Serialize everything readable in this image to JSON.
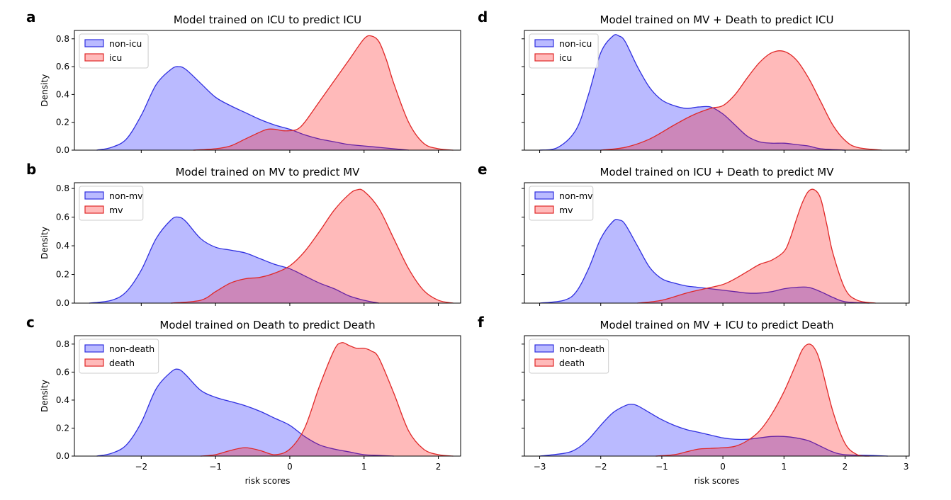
{
  "chart_data": [
    {
      "panel": "a",
      "type": "area",
      "title": "Model trained on ICU to predict ICU",
      "ylabel": "Density",
      "xlabel": "",
      "xlim": [
        -2.9,
        2.3
      ],
      "ylim": [
        0,
        0.86
      ],
      "xticks": [
        -2,
        -1,
        0,
        1,
        2
      ],
      "show_xticklabels": false,
      "yticks": [
        0.0,
        0.2,
        0.4,
        0.6,
        0.8
      ],
      "show_yticklabels": true,
      "legend": "top-left",
      "series": [
        {
          "name": "non-icu",
          "color": "#0000ff",
          "x": [
            -2.6,
            -2.4,
            -2.2,
            -2.0,
            -1.8,
            -1.6,
            -1.5,
            -1.4,
            -1.2,
            -1.0,
            -0.8,
            -0.6,
            -0.4,
            -0.2,
            0.0,
            0.2,
            0.4,
            0.6,
            0.8,
            1.0,
            1.2,
            1.4,
            1.6
          ],
          "y": [
            0.0,
            0.02,
            0.08,
            0.25,
            0.47,
            0.58,
            0.6,
            0.58,
            0.48,
            0.38,
            0.32,
            0.27,
            0.22,
            0.18,
            0.15,
            0.11,
            0.08,
            0.06,
            0.04,
            0.03,
            0.02,
            0.01,
            0.0
          ]
        },
        {
          "name": "icu",
          "color": "#ff0000",
          "x": [
            -1.3,
            -1.0,
            -0.8,
            -0.6,
            -0.4,
            -0.3,
            -0.2,
            -0.1,
            0.0,
            0.1,
            0.2,
            0.4,
            0.6,
            0.8,
            1.0,
            1.1,
            1.2,
            1.3,
            1.4,
            1.6,
            1.8,
            2.0,
            2.2
          ],
          "y": [
            0.0,
            0.01,
            0.03,
            0.08,
            0.13,
            0.15,
            0.15,
            0.14,
            0.14,
            0.15,
            0.2,
            0.35,
            0.5,
            0.65,
            0.8,
            0.82,
            0.78,
            0.65,
            0.48,
            0.2,
            0.05,
            0.01,
            0.0
          ]
        }
      ]
    },
    {
      "panel": "b",
      "type": "area",
      "title": "Model trained on MV to predict MV",
      "ylabel": "Density",
      "xlabel": "",
      "xlim": [
        -2.9,
        2.3
      ],
      "ylim": [
        0,
        0.84
      ],
      "xticks": [
        -2,
        -1,
        0,
        1,
        2
      ],
      "show_xticklabels": false,
      "yticks": [
        0.0,
        0.2,
        0.4,
        0.6,
        0.8
      ],
      "show_yticklabels": true,
      "legend": "top-left",
      "series": [
        {
          "name": "non-mv",
          "color": "#0000ff",
          "x": [
            -2.7,
            -2.4,
            -2.2,
            -2.0,
            -1.8,
            -1.6,
            -1.5,
            -1.4,
            -1.2,
            -1.0,
            -0.8,
            -0.6,
            -0.4,
            -0.2,
            0.0,
            0.2,
            0.4,
            0.6,
            0.8,
            1.0,
            1.2
          ],
          "y": [
            0.0,
            0.02,
            0.08,
            0.23,
            0.45,
            0.58,
            0.6,
            0.57,
            0.45,
            0.39,
            0.37,
            0.35,
            0.31,
            0.27,
            0.24,
            0.19,
            0.14,
            0.1,
            0.05,
            0.02,
            0.0
          ]
        },
        {
          "name": "mv",
          "color": "#ff0000",
          "x": [
            -1.6,
            -1.2,
            -1.0,
            -0.8,
            -0.6,
            -0.4,
            -0.2,
            0.0,
            0.2,
            0.4,
            0.6,
            0.8,
            0.9,
            1.0,
            1.2,
            1.4,
            1.6,
            1.8,
            2.0,
            2.2
          ],
          "y": [
            0.0,
            0.02,
            0.08,
            0.14,
            0.17,
            0.18,
            0.21,
            0.26,
            0.36,
            0.5,
            0.65,
            0.76,
            0.79,
            0.78,
            0.66,
            0.45,
            0.24,
            0.09,
            0.02,
            0.0
          ]
        }
      ]
    },
    {
      "panel": "c",
      "type": "area",
      "title": "Model trained on Death to predict Death",
      "ylabel": "Density",
      "xlabel": "risk scores",
      "xlim": [
        -2.9,
        2.3
      ],
      "ylim": [
        0,
        0.86
      ],
      "xticks": [
        -2,
        -1,
        0,
        1,
        2
      ],
      "show_xticklabels": true,
      "yticks": [
        0.0,
        0.2,
        0.4,
        0.6,
        0.8
      ],
      "show_yticklabels": true,
      "legend": "top-left",
      "series": [
        {
          "name": "non-death",
          "color": "#0000ff",
          "x": [
            -2.6,
            -2.4,
            -2.2,
            -2.0,
            -1.8,
            -1.6,
            -1.5,
            -1.4,
            -1.2,
            -1.0,
            -0.8,
            -0.6,
            -0.4,
            -0.2,
            0.0,
            0.2,
            0.4,
            0.6,
            0.8,
            1.0,
            1.2,
            1.4
          ],
          "y": [
            0.0,
            0.02,
            0.08,
            0.24,
            0.48,
            0.6,
            0.62,
            0.58,
            0.47,
            0.42,
            0.39,
            0.36,
            0.32,
            0.27,
            0.22,
            0.14,
            0.08,
            0.05,
            0.03,
            0.01,
            0.005,
            0.0
          ]
        },
        {
          "name": "death",
          "color": "#ff0000",
          "x": [
            -1.2,
            -1.0,
            -0.8,
            -0.6,
            -0.4,
            -0.2,
            0.0,
            0.2,
            0.4,
            0.6,
            0.7,
            0.8,
            0.9,
            1.0,
            1.1,
            1.2,
            1.4,
            1.6,
            1.8,
            2.0,
            2.2
          ],
          "y": [
            0.0,
            0.01,
            0.04,
            0.06,
            0.04,
            0.01,
            0.05,
            0.2,
            0.5,
            0.76,
            0.81,
            0.79,
            0.77,
            0.77,
            0.75,
            0.7,
            0.45,
            0.18,
            0.05,
            0.01,
            0.0
          ]
        }
      ]
    },
    {
      "panel": "d",
      "type": "area",
      "title": "Model trained on MV + Death to predict ICU",
      "ylabel": "",
      "xlabel": "",
      "xlim": [
        -3.25,
        3.05
      ],
      "ylim": [
        0,
        0.86
      ],
      "xticks": [
        -3,
        -2,
        -1,
        0,
        1,
        2,
        3
      ],
      "show_xticklabels": false,
      "yticks": [
        0.0,
        0.2,
        0.4,
        0.6,
        0.8
      ],
      "show_yticklabels": false,
      "legend": "top-left",
      "series": [
        {
          "name": "non-icu",
          "color": "#0000ff",
          "x": [
            -3.0,
            -2.7,
            -2.4,
            -2.2,
            -2.0,
            -1.8,
            -1.7,
            -1.6,
            -1.4,
            -1.2,
            -1.0,
            -0.8,
            -0.6,
            -0.4,
            -0.2,
            0.0,
            0.2,
            0.4,
            0.6,
            0.8,
            1.0,
            1.2,
            1.4,
            1.6,
            2.0
          ],
          "y": [
            0.0,
            0.02,
            0.15,
            0.4,
            0.7,
            0.82,
            0.82,
            0.78,
            0.6,
            0.45,
            0.36,
            0.32,
            0.3,
            0.31,
            0.31,
            0.26,
            0.18,
            0.1,
            0.06,
            0.05,
            0.05,
            0.04,
            0.03,
            0.01,
            0.0
          ]
        },
        {
          "name": "icu",
          "color": "#ff0000",
          "x": [
            -2.0,
            -1.6,
            -1.2,
            -0.8,
            -0.5,
            -0.2,
            0.0,
            0.2,
            0.4,
            0.6,
            0.8,
            1.0,
            1.2,
            1.4,
            1.6,
            1.8,
            2.0,
            2.2,
            2.6
          ],
          "y": [
            0.0,
            0.02,
            0.08,
            0.18,
            0.25,
            0.3,
            0.32,
            0.4,
            0.52,
            0.63,
            0.7,
            0.71,
            0.65,
            0.52,
            0.35,
            0.18,
            0.07,
            0.02,
            0.0
          ]
        }
      ]
    },
    {
      "panel": "e",
      "type": "area",
      "title": "Model trained on ICU + Death to predict MV",
      "ylabel": "",
      "xlabel": "",
      "xlim": [
        -3.25,
        3.05
      ],
      "ylim": [
        0,
        0.84
      ],
      "xticks": [
        -3,
        -2,
        -1,
        0,
        1,
        2,
        3
      ],
      "show_xticklabels": false,
      "yticks": [
        0.0,
        0.2,
        0.4,
        0.6,
        0.8
      ],
      "show_yticklabels": false,
      "legend": "top-left",
      "series": [
        {
          "name": "non-mv",
          "color": "#0000ff",
          "x": [
            -3.0,
            -2.6,
            -2.4,
            -2.2,
            -2.0,
            -1.8,
            -1.7,
            -1.6,
            -1.4,
            -1.2,
            -1.0,
            -0.8,
            -0.6,
            -0.4,
            -0.2,
            0.0,
            0.2,
            0.4,
            0.6,
            0.8,
            1.0,
            1.2,
            1.4,
            1.6,
            1.8,
            2.0,
            2.4
          ],
          "y": [
            0.0,
            0.02,
            0.08,
            0.24,
            0.45,
            0.57,
            0.58,
            0.55,
            0.4,
            0.25,
            0.17,
            0.14,
            0.12,
            0.11,
            0.1,
            0.09,
            0.08,
            0.07,
            0.07,
            0.08,
            0.1,
            0.11,
            0.11,
            0.08,
            0.04,
            0.01,
            0.0
          ]
        },
        {
          "name": "mv",
          "color": "#ff0000",
          "x": [
            -1.4,
            -1.0,
            -0.6,
            -0.3,
            0.0,
            0.2,
            0.4,
            0.6,
            0.8,
            1.0,
            1.1,
            1.2,
            1.3,
            1.4,
            1.5,
            1.6,
            1.7,
            1.8,
            2.0,
            2.2,
            2.5
          ],
          "y": [
            0.0,
            0.02,
            0.07,
            0.1,
            0.13,
            0.17,
            0.22,
            0.27,
            0.3,
            0.36,
            0.45,
            0.58,
            0.7,
            0.78,
            0.79,
            0.73,
            0.55,
            0.35,
            0.1,
            0.02,
            0.0
          ]
        }
      ]
    },
    {
      "panel": "f",
      "type": "area",
      "title": "Model trained on MV + ICU to predict Death",
      "ylabel": "",
      "xlabel": "risk scores",
      "xlim": [
        -3.25,
        3.05
      ],
      "ylim": [
        0,
        0.86
      ],
      "xticks": [
        -3,
        -2,
        -1,
        0,
        1,
        2,
        3
      ],
      "show_xticklabels": true,
      "yticks": [
        0.0,
        0.2,
        0.4,
        0.6,
        0.8
      ],
      "show_yticklabels": false,
      "legend": "top-left",
      "series": [
        {
          "name": "non-death",
          "color": "#0000ff",
          "x": [
            -3.0,
            -2.6,
            -2.4,
            -2.2,
            -2.0,
            -1.8,
            -1.6,
            -1.5,
            -1.4,
            -1.2,
            -1.0,
            -0.8,
            -0.6,
            -0.4,
            -0.2,
            0.0,
            0.2,
            0.4,
            0.6,
            0.8,
            1.0,
            1.2,
            1.4,
            1.6,
            1.8,
            2.0,
            2.4,
            2.7
          ],
          "y": [
            0.0,
            0.02,
            0.05,
            0.12,
            0.22,
            0.31,
            0.36,
            0.37,
            0.36,
            0.31,
            0.26,
            0.22,
            0.19,
            0.17,
            0.15,
            0.13,
            0.12,
            0.12,
            0.13,
            0.14,
            0.14,
            0.13,
            0.11,
            0.07,
            0.03,
            0.01,
            0.005,
            0.0
          ]
        },
        {
          "name": "death",
          "color": "#ff0000",
          "x": [
            -1.1,
            -0.8,
            -0.6,
            -0.4,
            -0.2,
            0.0,
            0.2,
            0.4,
            0.6,
            0.8,
            1.0,
            1.2,
            1.3,
            1.4,
            1.5,
            1.6,
            1.8,
            2.0,
            2.2,
            2.4
          ],
          "y": [
            0.0,
            0.01,
            0.03,
            0.05,
            0.055,
            0.06,
            0.07,
            0.11,
            0.18,
            0.3,
            0.46,
            0.66,
            0.76,
            0.8,
            0.77,
            0.66,
            0.32,
            0.09,
            0.01,
            0.0
          ]
        }
      ]
    }
  ]
}
